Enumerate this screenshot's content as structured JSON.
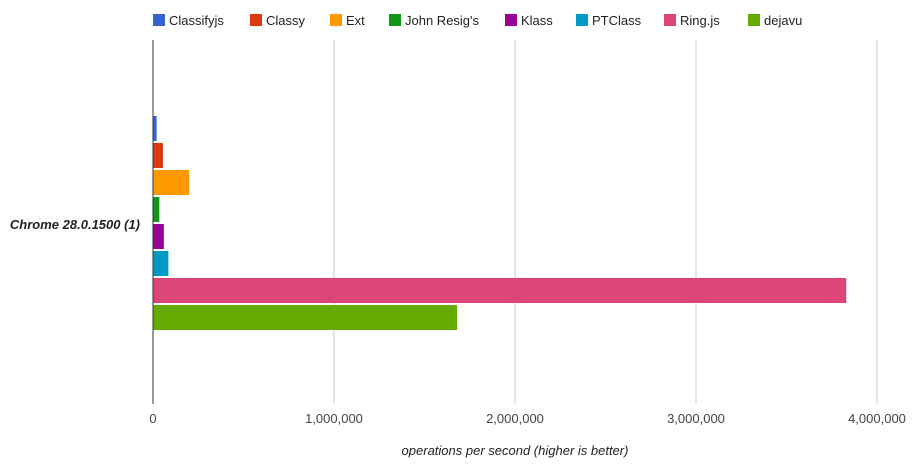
{
  "chart_data": {
    "type": "bar",
    "orientation": "horizontal",
    "categories": [
      "Chrome 28.0.1500 (1)"
    ],
    "series": [
      {
        "name": "Classifyjs",
        "color": "#3366cc",
        "values": [
          20000
        ]
      },
      {
        "name": "Classy",
        "color": "#dc3912",
        "values": [
          55000
        ]
      },
      {
        "name": "Ext",
        "color": "#ff9900",
        "values": [
          200000
        ]
      },
      {
        "name": "John Resig's",
        "color": "#109618",
        "values": [
          35000
        ]
      },
      {
        "name": "Klass",
        "color": "#990099",
        "values": [
          60000
        ]
      },
      {
        "name": "PTClass",
        "color": "#0099c6",
        "values": [
          85000
        ]
      },
      {
        "name": "Ring.js",
        "color": "#dd4477",
        "values": [
          3830000
        ]
      },
      {
        "name": "dejavu",
        "color": "#66aa00",
        "values": [
          1680000
        ]
      }
    ],
    "xlim": [
      0,
      4000000
    ],
    "ticks": [
      "0",
      "1,000,000",
      "2,000,000",
      "3,000,000",
      "4,000,000"
    ],
    "tick_values": [
      0,
      1000000,
      2000000,
      3000000,
      4000000
    ],
    "xlabel": "operations per second (higher is better)",
    "ylabel": "",
    "grid": true,
    "legend": "top"
  }
}
